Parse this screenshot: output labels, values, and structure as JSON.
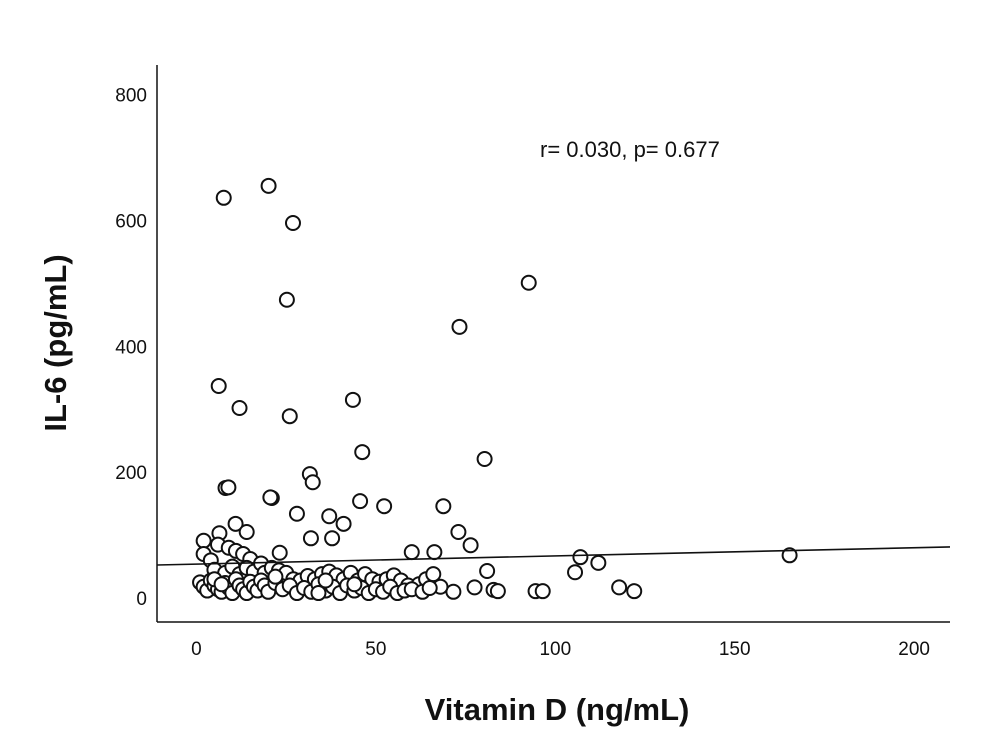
{
  "chart_data": {
    "type": "scatter",
    "xlabel": "Vitamin D (ng/mL)",
    "ylabel": "IL-6 (pg/mL)",
    "xlim": [
      -11,
      210
    ],
    "ylim": [
      -38,
      847
    ],
    "xticks": [
      0,
      50,
      100,
      150,
      200
    ],
    "yticks": [
      0,
      200,
      400,
      600,
      800
    ],
    "xtick_labels": [
      "0",
      "50",
      "100",
      "150",
      "200"
    ],
    "ytick_labels": [
      "0",
      "200",
      "400",
      "600",
      "800"
    ],
    "grid": false,
    "annotation": "r= 0.030, p= 0.677",
    "fit_line": {
      "intercept": 54,
      "slope": 0.13
    },
    "marker": "open-circle",
    "points": [
      [
        7.6,
        636
      ],
      [
        20.1,
        655
      ],
      [
        26.9,
        596
      ],
      [
        25.2,
        474
      ],
      [
        6.2,
        337
      ],
      [
        12.0,
        302
      ],
      [
        26.0,
        289
      ],
      [
        43.6,
        315
      ],
      [
        92.6,
        501
      ],
      [
        73.3,
        431
      ],
      [
        46.2,
        232
      ],
      [
        80.3,
        221
      ],
      [
        31.6,
        197
      ],
      [
        32.4,
        184
      ],
      [
        8.1,
        175
      ],
      [
        8.9,
        176
      ],
      [
        21,
        159
      ],
      [
        20.6,
        160
      ],
      [
        45.6,
        154
      ],
      [
        52.3,
        146
      ],
      [
        68.8,
        146
      ],
      [
        28,
        134
      ],
      [
        37,
        130
      ],
      [
        41,
        118
      ],
      [
        10.9,
        118
      ],
      [
        6.4,
        103
      ],
      [
        14,
        105
      ],
      [
        73,
        105
      ],
      [
        31.9,
        95
      ],
      [
        37.8,
        95
      ],
      [
        76.4,
        84
      ],
      [
        2,
        91
      ],
      [
        60,
        73
      ],
      [
        66.3,
        73
      ],
      [
        23.2,
        72
      ],
      [
        165.3,
        68
      ],
      [
        107,
        65
      ],
      [
        112,
        56
      ],
      [
        105.5,
        41
      ],
      [
        81,
        43
      ],
      [
        117.8,
        17
      ],
      [
        122,
        11
      ],
      [
        77.5,
        17
      ],
      [
        71.6,
        10
      ],
      [
        82.8,
        13
      ],
      [
        84,
        11
      ],
      [
        94.5,
        11
      ],
      [
        96.5,
        11
      ],
      [
        2,
        70
      ],
      [
        4,
        60
      ],
      [
        6,
        85
      ],
      [
        9,
        80
      ],
      [
        11,
        75
      ],
      [
        13,
        70
      ],
      [
        15,
        62
      ],
      [
        5,
        45
      ],
      [
        8,
        40
      ],
      [
        10,
        50
      ],
      [
        12,
        38
      ],
      [
        14,
        48
      ],
      [
        16,
        42
      ],
      [
        18,
        55
      ],
      [
        19,
        40
      ],
      [
        21,
        48
      ],
      [
        23,
        44
      ],
      [
        25,
        40
      ],
      [
        27,
        30
      ],
      [
        29,
        28
      ],
      [
        31,
        35
      ],
      [
        33,
        30
      ],
      [
        35,
        38
      ],
      [
        37,
        42
      ],
      [
        39,
        36
      ],
      [
        41,
        30
      ],
      [
        43,
        40
      ],
      [
        45,
        28
      ],
      [
        47,
        38
      ],
      [
        49,
        30
      ],
      [
        51,
        26
      ],
      [
        53,
        30
      ],
      [
        55,
        36
      ],
      [
        57,
        28
      ],
      [
        59,
        20
      ],
      [
        62,
        22
      ],
      [
        64,
        30
      ],
      [
        66,
        38
      ],
      [
        68,
        18
      ],
      [
        1,
        25
      ],
      [
        2,
        18
      ],
      [
        3,
        12
      ],
      [
        4,
        28
      ],
      [
        5,
        20
      ],
      [
        6,
        14
      ],
      [
        7,
        10
      ],
      [
        8,
        24
      ],
      [
        9,
        16
      ],
      [
        10,
        8
      ],
      [
        11,
        30
      ],
      [
        12,
        20
      ],
      [
        13,
        14
      ],
      [
        14,
        8
      ],
      [
        15,
        26
      ],
      [
        16,
        18
      ],
      [
        17,
        12
      ],
      [
        18,
        28
      ],
      [
        19,
        20
      ],
      [
        20,
        10
      ],
      [
        22,
        24
      ],
      [
        24,
        14
      ],
      [
        26,
        20
      ],
      [
        28,
        8
      ],
      [
        30,
        16
      ],
      [
        32,
        10
      ],
      [
        34,
        22
      ],
      [
        36,
        12
      ],
      [
        38,
        18
      ],
      [
        40,
        8
      ],
      [
        42,
        20
      ],
      [
        44,
        12
      ],
      [
        46,
        16
      ],
      [
        48,
        8
      ],
      [
        50,
        14
      ],
      [
        52,
        10
      ],
      [
        54,
        18
      ],
      [
        56,
        8
      ],
      [
        58,
        12
      ],
      [
        60,
        14
      ],
      [
        63,
        10
      ],
      [
        65,
        16
      ],
      [
        5,
        30
      ],
      [
        7,
        22
      ],
      [
        22,
        34
      ],
      [
        34,
        8
      ],
      [
        44,
        22
      ],
      [
        36,
        28
      ]
    ]
  }
}
